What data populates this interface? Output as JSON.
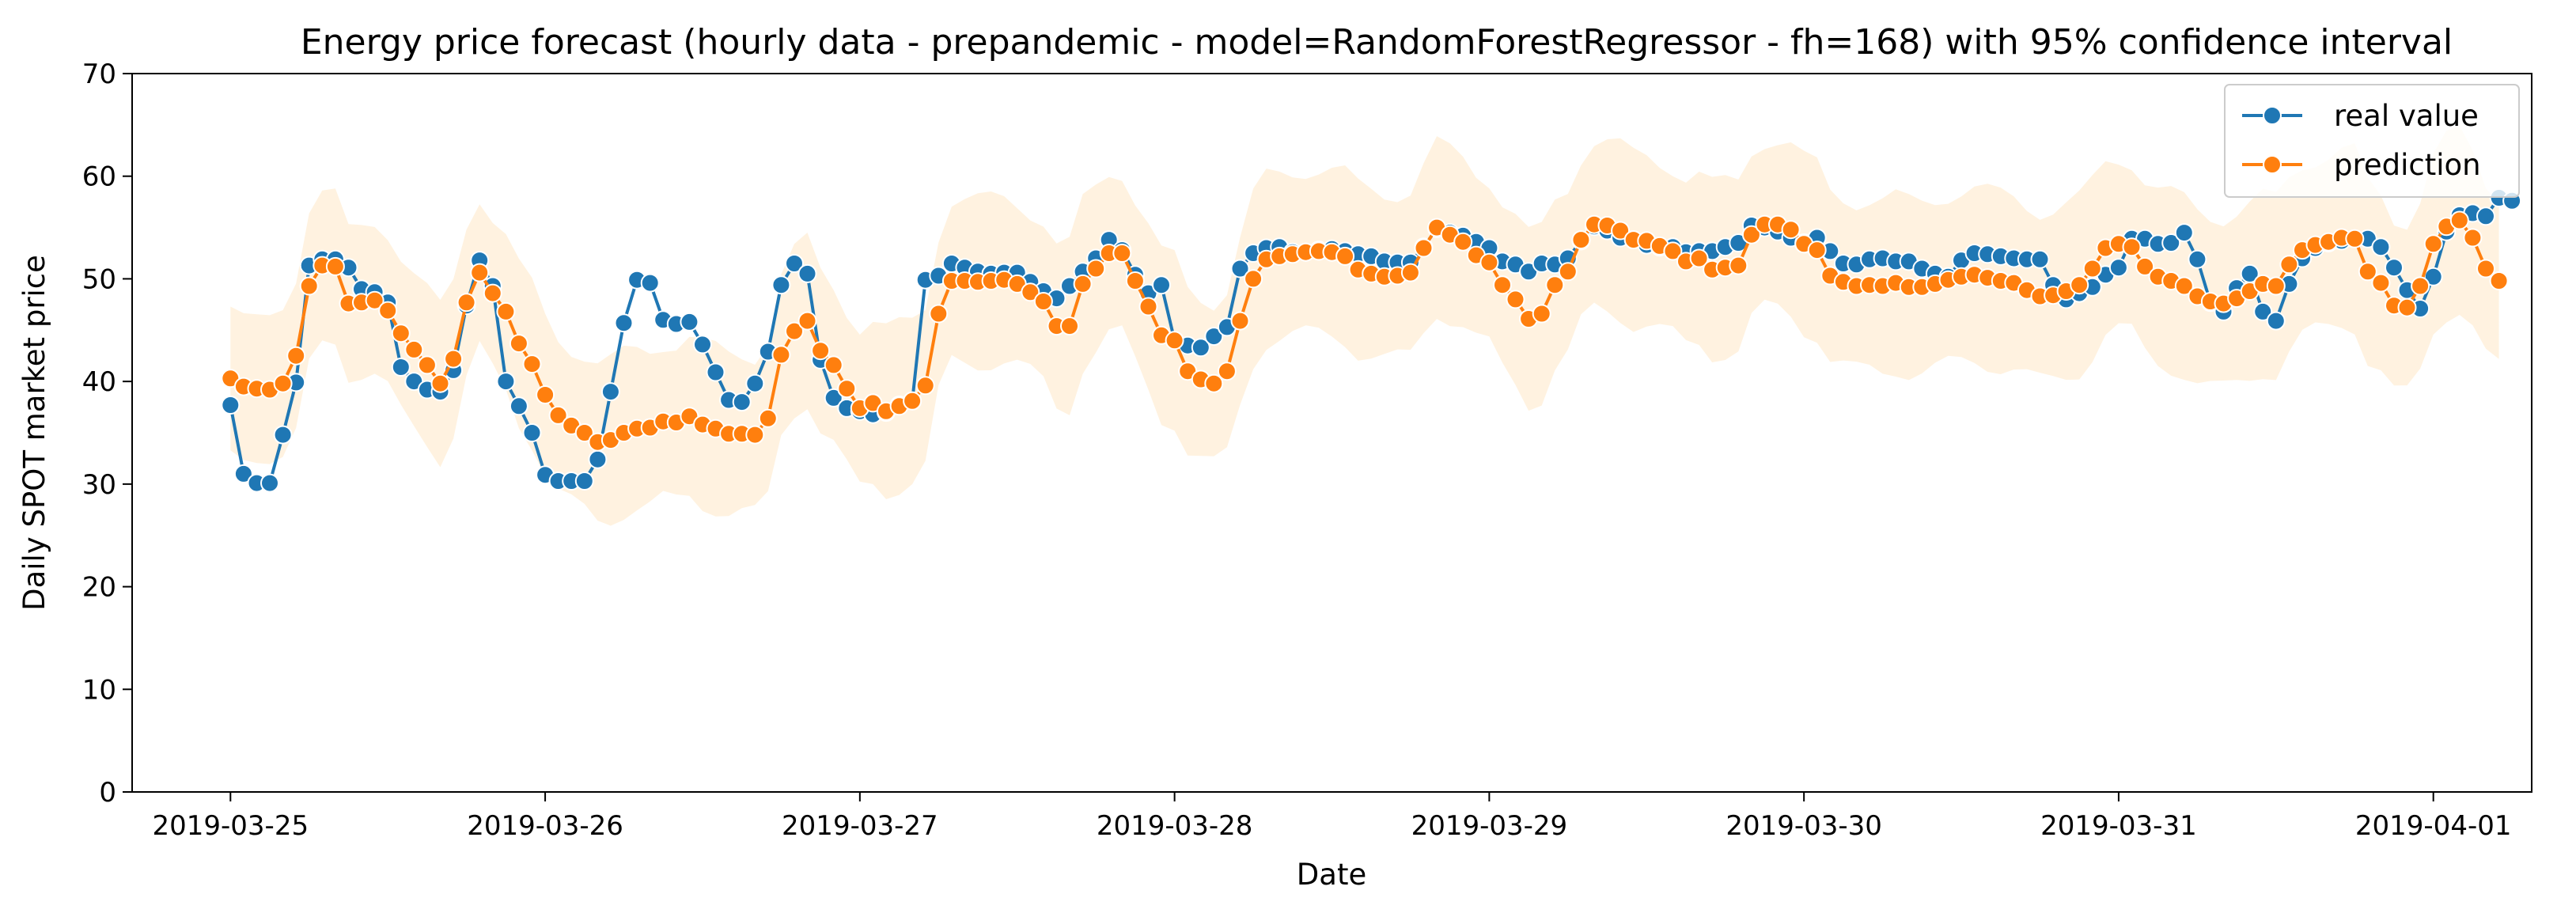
{
  "chart_data": {
    "type": "line",
    "title": "Energy price forecast (hourly data - prepandemic - model=RandomForestRegressor - fh=168) with 95% confidence interval",
    "xlabel": "Date",
    "ylabel": "Daily SPOT market price",
    "x_start": "2019-03-25 00:00",
    "x_step": "1 hour",
    "xticks": [
      "2019-03-25",
      "2019-03-26",
      "2019-03-27",
      "2019-03-28",
      "2019-03-29",
      "2019-03-30",
      "2019-03-31",
      "2019-04-01"
    ],
    "xlim": [
      "2019-03-24 16:30",
      "2019-04-01 07:30"
    ],
    "yticks": [
      0,
      10,
      20,
      30,
      40,
      50,
      60,
      70
    ],
    "ylim": [
      0,
      70
    ],
    "grid": false,
    "legend_position": "top-right",
    "confidence_interval": "95%",
    "series": [
      {
        "name": "real value",
        "color": "#1f77b4",
        "values": [
          37.7,
          31.0,
          30.1,
          30.1,
          34.8,
          39.9,
          51.3,
          51.9,
          51.9,
          51.1,
          49.0,
          48.7,
          47.7,
          41.4,
          40.0,
          39.2,
          39.0,
          41.1,
          47.4,
          51.8,
          49.3,
          40.0,
          37.6,
          35.0,
          30.9,
          30.3,
          30.3,
          30.3,
          32.4,
          39.0,
          45.7,
          49.9,
          49.6,
          46.0,
          45.6,
          45.8,
          43.6,
          40.9,
          38.2,
          38.0,
          39.8,
          42.9,
          49.4,
          51.5,
          50.5,
          42.1,
          38.4,
          37.4,
          37.1,
          36.8,
          37.0,
          37.7,
          38.1,
          49.9,
          50.3,
          51.5,
          51.1,
          50.7,
          50.5,
          50.6,
          50.6,
          49.7,
          48.8,
          48.1,
          49.3,
          50.7,
          52.0,
          53.8,
          52.8,
          50.4,
          48.6,
          49.4,
          44.0,
          43.5,
          43.3,
          44.4,
          45.3,
          51.0,
          52.5,
          53.0,
          53.1,
          52.6,
          52.6,
          52.8,
          52.9,
          52.7,
          52.4,
          52.2,
          51.7,
          51.6,
          51.6,
          53.1,
          54.9,
          54.5,
          54.2,
          53.6,
          53.0,
          51.7,
          51.4,
          50.7,
          51.5,
          51.4,
          52.0,
          53.7,
          55.1,
          54.7,
          54.0,
          53.8,
          53.3,
          53.1,
          53.1,
          52.6,
          52.7,
          52.7,
          53.1,
          53.5,
          55.2,
          55.0,
          54.6,
          54.0,
          53.5,
          54.0,
          52.7,
          51.5,
          51.4,
          51.9,
          52.0,
          51.7,
          51.7,
          51.0,
          50.5,
          50.2,
          51.8,
          52.5,
          52.4,
          52.2,
          52.0,
          51.9,
          51.9,
          49.4,
          48.0,
          48.6,
          49.2,
          50.4,
          51.1,
          53.9,
          53.9,
          53.4,
          53.5,
          54.5,
          51.9,
          47.7,
          46.8,
          49.1,
          50.5,
          46.8,
          45.9,
          49.5,
          52.0,
          53.0,
          53.5,
          53.7,
          53.9,
          53.9,
          53.1,
          51.1,
          48.9,
          47.1,
          50.2,
          54.6,
          56.2,
          56.4,
          56.1,
          57.9,
          57.6
        ]
      },
      {
        "name": "prediction",
        "color": "#ff7f0e",
        "values": [
          40.3,
          39.5,
          39.3,
          39.2,
          39.8,
          42.5,
          49.3,
          51.3,
          51.2,
          47.6,
          47.7,
          47.9,
          46.9,
          44.7,
          43.1,
          41.6,
          39.8,
          42.2,
          47.7,
          50.6,
          48.6,
          46.8,
          43.7,
          41.7,
          38.7,
          36.7,
          35.7,
          35.0,
          34.1,
          34.3,
          35.0,
          35.4,
          35.5,
          36.1,
          36.0,
          36.6,
          35.8,
          35.4,
          34.9,
          34.9,
          34.8,
          36.4,
          42.6,
          44.9,
          45.9,
          43.0,
          41.6,
          39.3,
          37.4,
          37.9,
          37.1,
          37.6,
          38.1,
          39.6,
          46.6,
          49.8,
          49.8,
          49.7,
          49.8,
          49.9,
          49.5,
          48.7,
          47.8,
          45.4,
          45.4,
          49.5,
          51.0,
          52.5,
          52.5,
          49.8,
          47.3,
          44.5,
          44.0,
          41.0,
          40.2,
          39.8,
          41.0,
          45.9,
          50.0,
          51.9,
          52.2,
          52.4,
          52.6,
          52.7,
          52.6,
          52.2,
          50.9,
          50.5,
          50.2,
          50.3,
          50.6,
          53.0,
          55.0,
          54.3,
          53.6,
          52.3,
          51.6,
          49.4,
          48.0,
          46.1,
          46.6,
          49.4,
          50.7,
          53.8,
          55.3,
          55.2,
          54.7,
          53.8,
          53.7,
          53.2,
          52.7,
          51.7,
          52.0,
          50.9,
          51.1,
          51.3,
          54.3,
          55.3,
          55.3,
          54.8,
          53.4,
          52.8,
          50.3,
          49.7,
          49.3,
          49.4,
          49.3,
          49.6,
          49.2,
          49.2,
          49.5,
          49.9,
          50.2,
          50.4,
          50.1,
          49.8,
          49.6,
          48.9,
          48.3,
          48.4,
          48.8,
          49.4,
          51.0,
          53.0,
          53.4,
          53.1,
          51.2,
          50.2,
          49.8,
          49.3,
          48.3,
          47.8,
          47.6,
          48.1,
          48.8,
          49.5,
          49.3,
          51.4,
          52.8,
          53.3,
          53.6,
          54.0,
          53.9,
          50.7,
          49.6,
          47.4,
          47.2,
          49.3,
          53.4,
          55.1,
          55.7,
          54.0,
          51.0,
          49.8
        ]
      }
    ]
  }
}
